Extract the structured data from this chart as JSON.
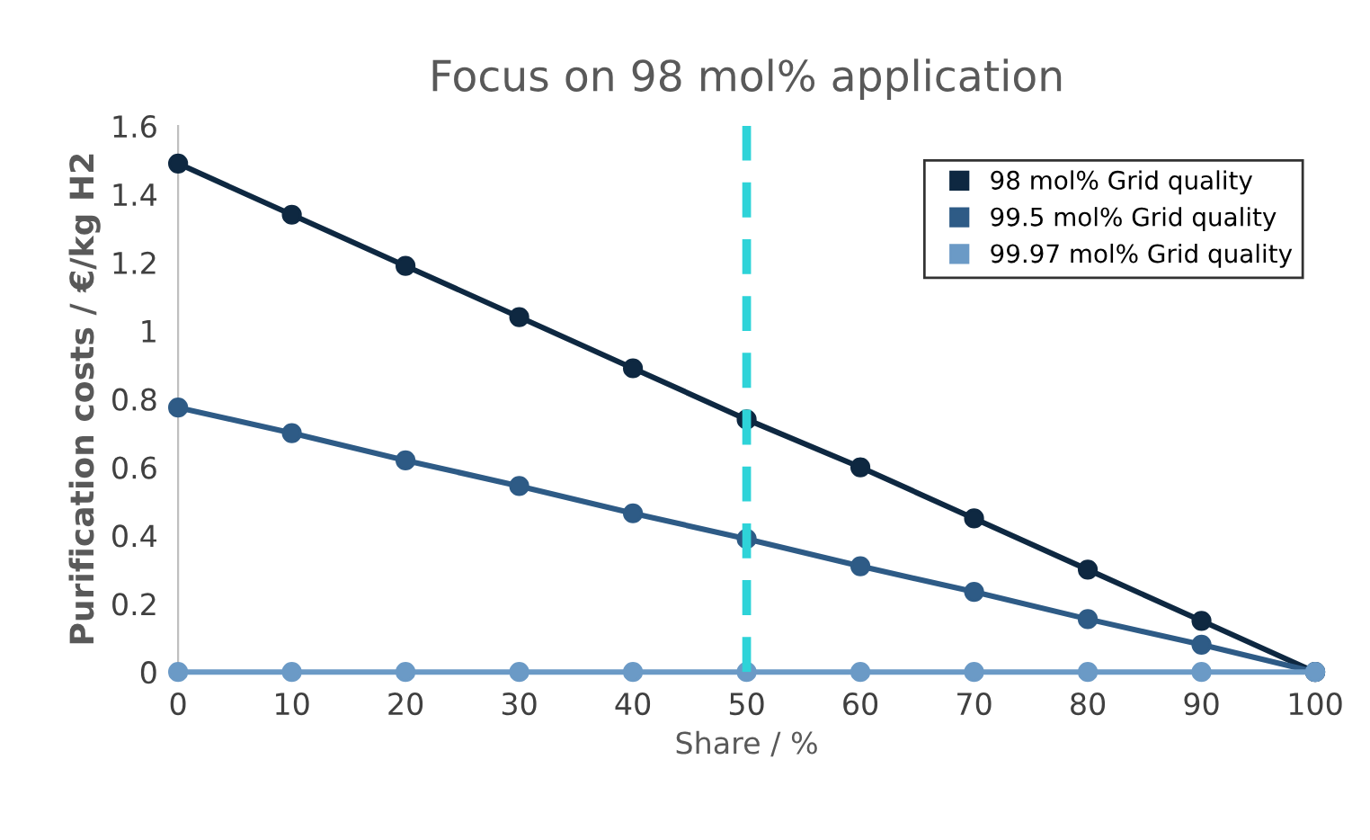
{
  "chart_data": {
    "type": "line",
    "title": "Focus on 98 mol% application",
    "xlabel": "Share / %",
    "ylabel": "Purification costs / €/kg H2",
    "x": [
      0,
      10,
      20,
      30,
      40,
      50,
      60,
      70,
      80,
      90,
      100
    ],
    "series": [
      {
        "name": "98 mol% Grid quality",
        "color": "#0e2841",
        "values": [
          1.49,
          1.34,
          1.19,
          1.04,
          0.89,
          0.74,
          0.6,
          0.45,
          0.3,
          0.15,
          0
        ]
      },
      {
        "name": "99.5 mol% Grid quality",
        "color": "#2e5b86",
        "values": [
          0.775,
          0.7,
          0.62,
          0.545,
          0.465,
          0.39,
          0.31,
          0.235,
          0.155,
          0.08,
          0
        ]
      },
      {
        "name": "99.97 mol% Grid quality",
        "color": "#6b9ac6",
        "values": [
          0,
          0,
          0,
          0,
          0,
          0,
          0,
          0,
          0,
          0,
          0
        ]
      }
    ],
    "xlim": [
      0,
      100
    ],
    "xticks": [
      0,
      10,
      20,
      30,
      40,
      50,
      60,
      70,
      80,
      90,
      100
    ],
    "ylim": [
      0,
      1.6
    ],
    "yticks": [
      0,
      0.2,
      0.4,
      0.6,
      0.8,
      1,
      1.2,
      1.4,
      1.6
    ],
    "ref_lines": [
      {
        "axis": "x",
        "value": 50,
        "color": "#2ed3d8",
        "line_style": "dashed"
      }
    ],
    "grid": false,
    "legend": "top right",
    "marker": "circle",
    "line_style": "solid"
  }
}
